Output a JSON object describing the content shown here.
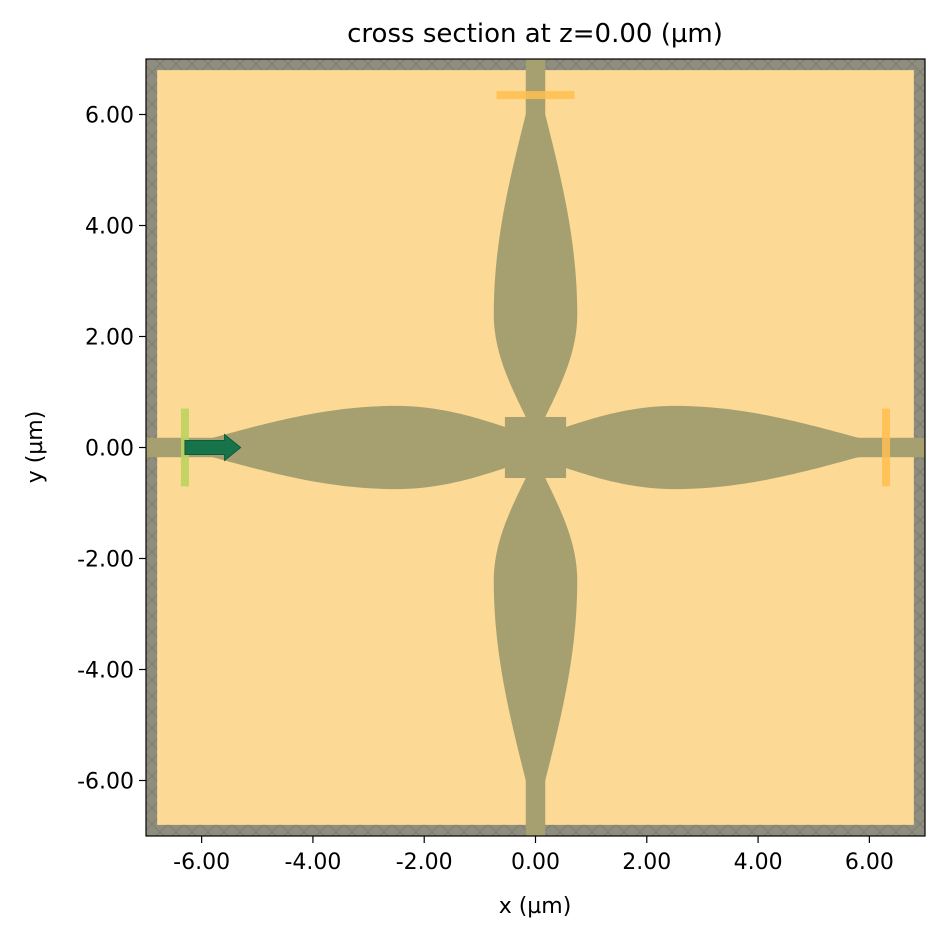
{
  "chart_data": {
    "type": "other",
    "title": "cross section at z=0.00 (µm)",
    "xlabel": "x (µm)",
    "ylabel": "y (µm)",
    "xlim": [
      -7.0,
      7.0
    ],
    "ylim": [
      -7.0,
      7.0
    ],
    "x_ticks": [
      -6,
      -4,
      -2,
      0,
      2,
      4,
      6
    ],
    "x_tick_labels": [
      "-6.00",
      "-4.00",
      "-2.00",
      "0.00",
      "2.00",
      "4.00",
      "6.00"
    ],
    "y_ticks": [
      6,
      4,
      2,
      0,
      -2,
      -4,
      -6
    ],
    "y_tick_labels": [
      "6.00",
      "4.00",
      "2.00",
      "0.00",
      "-2.00",
      "-4.00",
      "-6.00"
    ],
    "grid": false,
    "colors": {
      "background": "#fcd995",
      "structure": "#a6a071",
      "pml_boundary": "#8f8d7d",
      "source": "#bcd25e",
      "monitor": "#ffbe4f",
      "source_arrow": "#17734a"
    },
    "structures": {
      "waveguide_width": 0.35,
      "horizontal_lobes": [
        {
          "x_start": -5.8,
          "x_end": 0.0,
          "max_half_width": 0.75,
          "peak_x": -2.5
        },
        {
          "x_start": 0.0,
          "x_end": 5.8,
          "max_half_width": 0.75,
          "peak_x": 2.5
        }
      ],
      "vertical_lobes": [
        {
          "y_start": 0.55,
          "y_end": 6.0,
          "max_half_width": 0.75,
          "peak_y": 2.4
        },
        {
          "y_start": -0.55,
          "y_end": -6.0,
          "max_half_width": 0.75,
          "peak_y": -2.4
        }
      ],
      "center_square_half": 0.55
    },
    "source": {
      "x": -6.3,
      "y_range": [
        -0.7,
        0.7
      ],
      "direction": "+x",
      "arrow_x_range": [
        -6.3,
        -5.3
      ]
    },
    "monitors": [
      {
        "orientation": "vertical",
        "x": 6.3,
        "y_range": [
          -0.7,
          0.7
        ]
      },
      {
        "orientation": "horizontal",
        "y": 6.35,
        "x_range": [
          -0.7,
          0.7
        ]
      }
    ],
    "pml_thickness": 0.2
  }
}
